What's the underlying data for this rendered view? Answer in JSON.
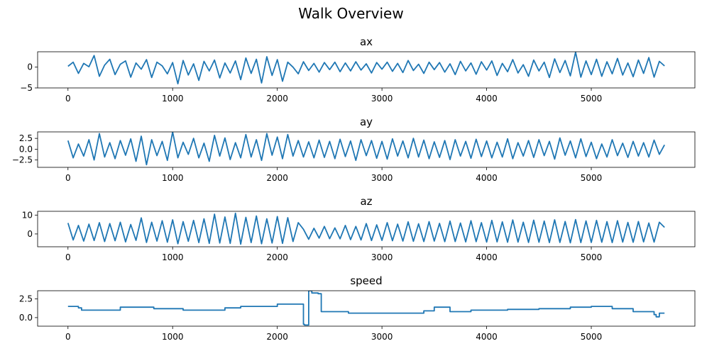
{
  "title": "Walk Overview",
  "chart_data": [
    {
      "type": "line",
      "title": "ax",
      "xlim": [
        -290,
        5990
      ],
      "ylim": [
        -5,
        3.7
      ],
      "x_ticks": [
        0,
        1000,
        2000,
        3000,
        4000,
        5000
      ],
      "x_tick_labels": [
        "0",
        "1000",
        "2000",
        "3000",
        "4000",
        "5000"
      ],
      "y_ticks": [
        0,
        -5
      ],
      "y_tick_labels": [
        "0",
        "−5"
      ],
      "series": [
        {
          "color": "#1f77b4",
          "x": [
            0,
            50,
            100,
            150,
            200,
            250,
            300,
            350,
            400,
            450,
            500,
            550,
            600,
            650,
            700,
            750,
            800,
            850,
            900,
            950,
            1000,
            1050,
            1100,
            1150,
            1200,
            1250,
            1300,
            1350,
            1400,
            1450,
            1500,
            1550,
            1600,
            1650,
            1700,
            1750,
            1800,
            1850,
            1900,
            1950,
            2000,
            2050,
            2100,
            2150,
            2200,
            2250,
            2300,
            2350,
            2400,
            2450,
            2500,
            2550,
            2600,
            2650,
            2700,
            2750,
            2800,
            2850,
            2900,
            2950,
            3000,
            3050,
            3100,
            3150,
            3200,
            3250,
            3300,
            3350,
            3400,
            3450,
            3500,
            3550,
            3600,
            3650,
            3700,
            3750,
            3800,
            3850,
            3900,
            3950,
            4000,
            4050,
            4100,
            4150,
            4200,
            4250,
            4300,
            4350,
            4400,
            4450,
            4500,
            4550,
            4600,
            4650,
            4700,
            4750,
            4800,
            4850,
            4900,
            4950,
            5000,
            5050,
            5100,
            5150,
            5200,
            5250,
            5300,
            5350,
            5400,
            5450,
            5500,
            5550,
            5600,
            5650,
            5700
          ],
          "y": [
            0.2,
            1.2,
            -1.5,
            0.9,
            0.1,
            2.8,
            -2.2,
            0.5,
            1.9,
            -1.8,
            0.7,
            1.5,
            -2.4,
            1.0,
            -0.5,
            1.8,
            -2.5,
            1.2,
            0.3,
            -1.6,
            1.1,
            -4.0,
            1.6,
            -1.9,
            0.8,
            -3.2,
            1.4,
            -0.9,
            1.7,
            -2.6,
            1.0,
            -1.4,
            1.5,
            -3.0,
            2.2,
            -1.5,
            1.9,
            -3.8,
            2.5,
            -2.0,
            1.8,
            -3.4,
            1.2,
            0.0,
            -1.6,
            1.3,
            -0.8,
            0.9,
            -1.2,
            1.1,
            -0.6,
            1.2,
            -1.1,
            1.0,
            -0.9,
            1.3,
            -0.7,
            0.8,
            -1.4,
            1.1,
            -0.5,
            1.2,
            -1.0,
            0.9,
            -1.3,
            1.6,
            -0.8,
            0.7,
            -1.5,
            1.2,
            -0.6,
            1.1,
            -1.2,
            0.8,
            -1.8,
            1.4,
            -0.9,
            1.0,
            -1.7,
            1.3,
            -0.7,
            1.5,
            -2.0,
            0.9,
            -1.1,
            1.8,
            -1.4,
            0.6,
            -2.2,
            1.7,
            -0.9,
            1.2,
            -2.5,
            2.0,
            -1.3,
            1.6,
            -2.1,
            3.6,
            -2.4,
            1.5,
            -1.8,
            1.9,
            -2.2,
            1.3,
            -1.6,
            2.1,
            -1.9,
            1.0,
            -2.3,
            1.7,
            -1.5,
            2.3,
            -2.4,
            1.4,
            0.3
          ]
        }
      ]
    },
    {
      "type": "line",
      "title": "ay",
      "xlim": [
        -290,
        5990
      ],
      "ylim": [
        -4.2,
        4.0
      ],
      "x_ticks": [
        0,
        1000,
        2000,
        3000,
        4000,
        5000
      ],
      "x_tick_labels": [
        "0",
        "1000",
        "2000",
        "3000",
        "4000",
        "5000"
      ],
      "y_ticks": [
        2.5,
        0.0,
        -2.5
      ],
      "y_tick_labels": [
        "2.5",
        "0.0",
        "−2.5"
      ],
      "series": [
        {
          "color": "#1f77b4",
          "x": [
            0,
            50,
            100,
            150,
            200,
            250,
            300,
            350,
            400,
            450,
            500,
            550,
            600,
            650,
            700,
            750,
            800,
            850,
            900,
            950,
            1000,
            1050,
            1100,
            1150,
            1200,
            1250,
            1300,
            1350,
            1400,
            1450,
            1500,
            1550,
            1600,
            1650,
            1700,
            1750,
            1800,
            1850,
            1900,
            1950,
            2000,
            2050,
            2100,
            2150,
            2200,
            2250,
            2300,
            2350,
            2400,
            2450,
            2500,
            2550,
            2600,
            2650,
            2700,
            2750,
            2800,
            2850,
            2900,
            2950,
            3000,
            3050,
            3100,
            3150,
            3200,
            3250,
            3300,
            3350,
            3400,
            3450,
            3500,
            3550,
            3600,
            3650,
            3700,
            3750,
            3800,
            3850,
            3900,
            3950,
            4000,
            4050,
            4100,
            4150,
            4200,
            4250,
            4300,
            4350,
            4400,
            4450,
            4500,
            4550,
            4600,
            4650,
            4700,
            4750,
            4800,
            4850,
            4900,
            4950,
            5000,
            5050,
            5100,
            5150,
            5200,
            5250,
            5300,
            5350,
            5400,
            5450,
            5500,
            5550,
            5600,
            5650,
            5700
          ],
          "y": [
            2.0,
            -2.0,
            1.2,
            -1.6,
            2.2,
            -2.5,
            3.6,
            -1.8,
            1.5,
            -2.2,
            2.0,
            -1.4,
            2.4,
            -2.8,
            3.0,
            -3.6,
            2.2,
            -1.5,
            1.8,
            -2.6,
            4.0,
            -2.0,
            1.6,
            -1.2,
            2.5,
            -2.0,
            1.4,
            -2.8,
            3.2,
            -1.6,
            2.6,
            -2.4,
            1.5,
            -2.0,
            3.4,
            -1.8,
            2.2,
            -2.6,
            3.6,
            -1.4,
            2.8,
            -2.2,
            3.4,
            -1.6,
            2.0,
            -1.8,
            1.7,
            -2.0,
            2.1,
            -1.9,
            1.8,
            -2.2,
            2.3,
            -1.7,
            1.9,
            -2.6,
            2.2,
            -1.5,
            2.0,
            -2.1,
            1.8,
            -2.3,
            2.4,
            -1.6,
            1.9,
            -2.0,
            2.5,
            -1.8,
            2.1,
            -2.2,
            1.7,
            -1.9,
            2.0,
            -2.4,
            2.2,
            -1.6,
            1.8,
            -2.1,
            2.3,
            -1.7,
            1.9,
            -2.0,
            1.6,
            -1.8,
            2.4,
            -2.2,
            1.5,
            -1.6,
            2.0,
            -1.9,
            2.2,
            -1.5,
            1.8,
            -2.3,
            2.6,
            -1.4,
            1.9,
            -2.0,
            2.4,
            -1.7,
            1.6,
            -2.2,
            1.2,
            -1.8,
            2.2,
            -1.5,
            1.4,
            -1.9,
            1.8,
            -1.6,
            1.5,
            -1.8,
            2.1,
            -1.2,
            1.0
          ]
        }
      ]
    },
    {
      "type": "line",
      "title": "az",
      "xlim": [
        -290,
        5990
      ],
      "ylim": [
        -6.8,
        12.0
      ],
      "x_ticks": [
        0,
        1000,
        2000,
        3000,
        4000,
        5000
      ],
      "x_tick_labels": [
        "0",
        "1000",
        "2000",
        "3000",
        "4000",
        "5000"
      ],
      "y_ticks": [
        10,
        0
      ],
      "y_tick_labels": [
        "10",
        "0"
      ],
      "series": [
        {
          "color": "#1f77b4",
          "x": [
            0,
            50,
            100,
            150,
            200,
            250,
            300,
            350,
            400,
            450,
            500,
            550,
            600,
            650,
            700,
            750,
            800,
            850,
            900,
            950,
            1000,
            1050,
            1100,
            1150,
            1200,
            1250,
            1300,
            1350,
            1400,
            1450,
            1500,
            1550,
            1600,
            1650,
            1700,
            1750,
            1800,
            1850,
            1900,
            1950,
            2000,
            2050,
            2100,
            2150,
            2200,
            2250,
            2300,
            2350,
            2400,
            2450,
            2500,
            2550,
            2600,
            2650,
            2700,
            2750,
            2800,
            2850,
            2900,
            2950,
            3000,
            3050,
            3100,
            3150,
            3200,
            3250,
            3300,
            3350,
            3400,
            3450,
            3500,
            3550,
            3600,
            3650,
            3700,
            3750,
            3800,
            3850,
            3900,
            3950,
            4000,
            4050,
            4100,
            4150,
            4200,
            4250,
            4300,
            4350,
            4400,
            4450,
            4500,
            4550,
            4600,
            4650,
            4700,
            4750,
            4800,
            4850,
            4900,
            4950,
            5000,
            5050,
            5100,
            5150,
            5200,
            5250,
            5300,
            5350,
            5400,
            5450,
            5500,
            5550,
            5600,
            5650,
            5700
          ],
          "y": [
            5.8,
            -3.2,
            4.5,
            -3.8,
            5.2,
            -3.5,
            6.0,
            -4.0,
            5.5,
            -3.6,
            6.2,
            -4.2,
            5.0,
            -3.4,
            8.5,
            -4.5,
            6.2,
            -3.8,
            7.0,
            -4.4,
            7.5,
            -5.2,
            6.5,
            -3.9,
            7.2,
            -4.6,
            8.0,
            -5.0,
            10.5,
            -4.8,
            9.0,
            -5.0,
            11.0,
            -5.4,
            8.8,
            -4.6,
            9.5,
            -5.2,
            8.0,
            -4.8,
            9.2,
            -5.0,
            8.6,
            -4.0,
            6.0,
            2.5,
            -2.8,
            3.0,
            -2.2,
            4.0,
            -2.5,
            3.2,
            -2.6,
            4.5,
            -3.0,
            4.0,
            -3.2,
            5.5,
            -3.5,
            4.8,
            -3.4,
            6.0,
            -3.6,
            5.2,
            -3.8,
            6.4,
            -3.9,
            5.4,
            -4.0,
            6.5,
            -3.8,
            5.6,
            -4.1,
            6.8,
            -4.0,
            5.8,
            -4.2,
            7.0,
            -4.1,
            6.0,
            -4.3,
            7.2,
            -4.2,
            6.4,
            -4.4,
            7.4,
            -4.3,
            6.2,
            -4.5,
            7.3,
            -4.4,
            6.8,
            -4.6,
            7.5,
            -4.5,
            6.6,
            -4.7,
            7.6,
            -4.6,
            6.9,
            -4.5,
            7.2,
            -4.4,
            6.5,
            -4.6,
            7.0,
            -4.3,
            6.1,
            -4.4,
            6.6,
            -4.2,
            5.8,
            -4.3,
            6.2,
            3.5
          ]
        }
      ]
    },
    {
      "type": "line",
      "title": "speed",
      "xlim": [
        -290,
        5990
      ],
      "ylim": [
        -1.15,
        3.6
      ],
      "x_ticks": [
        0,
        1000,
        2000,
        3000,
        4000,
        5000
      ],
      "x_tick_labels": [
        "0",
        "1000",
        "2000",
        "3000",
        "4000",
        "5000"
      ],
      "y_ticks": [
        2.5,
        0.0
      ],
      "y_tick_labels": [
        "2.5",
        "0.0"
      ],
      "series": [
        {
          "color": "#1f77b4",
          "x": [
            0,
            100,
            100,
            130,
            130,
            500,
            500,
            820,
            820,
            1100,
            1100,
            1500,
            1500,
            1650,
            1650,
            2000,
            2000,
            2250,
            2250,
            2260,
            2260,
            2300,
            2300,
            2330,
            2330,
            2390,
            2390,
            2420,
            2420,
            2680,
            2680,
            3400,
            3400,
            3500,
            3500,
            3650,
            3650,
            3850,
            3850,
            4200,
            4200,
            4500,
            4500,
            4800,
            4800,
            5000,
            5000,
            5200,
            5200,
            5400,
            5400,
            5600,
            5600,
            5620,
            5620,
            5650,
            5650,
            5700
          ],
          "y": [
            1.5,
            1.5,
            1.3,
            1.3,
            1.0,
            1.0,
            1.4,
            1.4,
            1.2,
            1.2,
            1.0,
            1.0,
            1.3,
            1.3,
            1.5,
            1.5,
            1.8,
            1.8,
            -0.9,
            -0.9,
            -1.0,
            -1.0,
            3.6,
            3.6,
            3.3,
            3.3,
            3.2,
            3.2,
            0.8,
            0.8,
            0.6,
            0.6,
            0.9,
            0.9,
            1.4,
            1.4,
            0.8,
            0.8,
            1.0,
            1.0,
            1.1,
            1.1,
            1.2,
            1.2,
            1.4,
            1.4,
            1.5,
            1.5,
            1.2,
            1.2,
            0.8,
            0.8,
            0.4,
            0.4,
            0.1,
            0.1,
            0.6,
            0.6
          ]
        }
      ]
    }
  ]
}
